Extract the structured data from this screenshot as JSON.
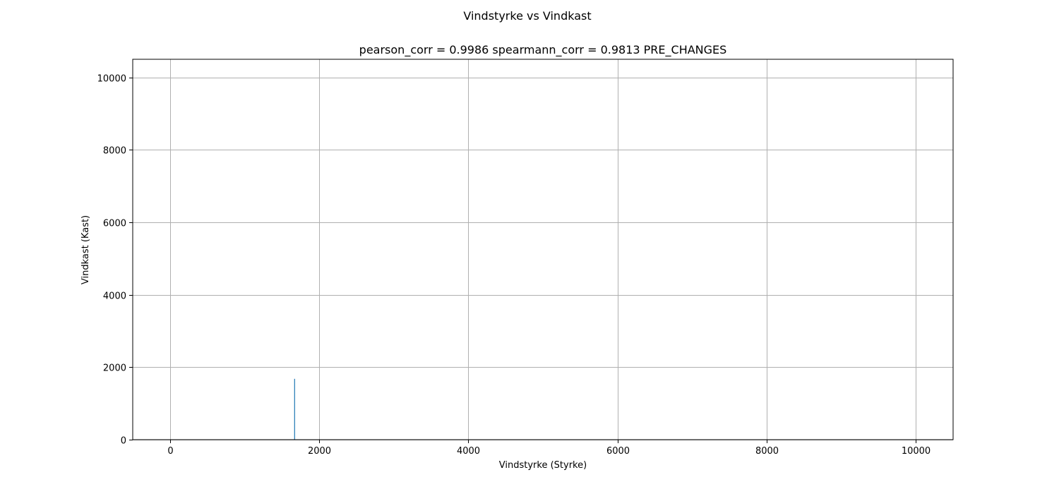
{
  "figure": {
    "suptitle": "Vindstyrke vs Vindkast"
  },
  "chart_data": {
    "type": "bar",
    "title": "pearson_corr = 0.9986 spearmann_corr = 0.9813 PRE_CHANGES",
    "xlabel": "Vindstyrke (Styrke)",
    "ylabel": "Vindkast (Kast)",
    "xlim": [
      -500,
      10500
    ],
    "ylim": [
      0,
      10500
    ],
    "xticks": [
      0,
      2000,
      4000,
      6000,
      8000,
      10000
    ],
    "yticks": [
      0,
      2000,
      4000,
      6000,
      8000,
      10000
    ],
    "grid": true,
    "bar_color": "#1f77b4",
    "bars": [
      {
        "x": 1670,
        "value": 1680
      }
    ]
  }
}
